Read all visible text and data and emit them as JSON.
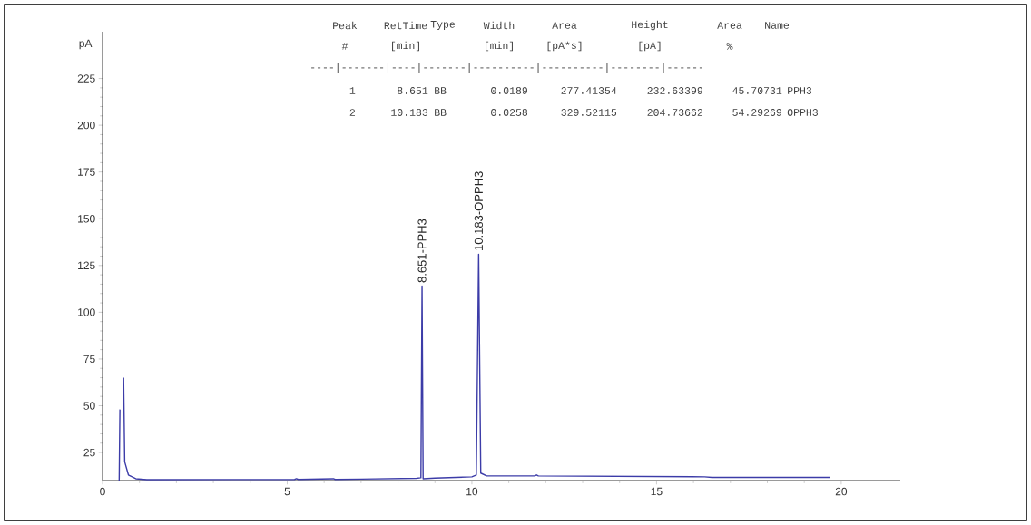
{
  "chart_data": {
    "type": "line",
    "ylabel": "pA",
    "x": [
      0.45,
      0.47,
      0.5,
      0.55,
      0.57,
      0.6,
      0.7,
      0.9,
      1.2,
      5.2,
      5.25,
      5.3,
      6.25,
      6.3,
      7.0,
      8.5,
      8.62,
      8.651,
      8.68,
      9.0,
      10.0,
      10.12,
      10.183,
      10.24,
      10.4,
      11.7,
      11.75,
      11.8,
      16.3,
      16.5,
      19.7
    ],
    "values": [
      10,
      48,
      null,
      null,
      65,
      20,
      13,
      11,
      10.5,
      10.6,
      11,
      10.6,
      11,
      10.6,
      10.8,
      11.2,
      11.5,
      114,
      11,
      11.3,
      12,
      13,
      131,
      14,
      12.5,
      12.5,
      13,
      12.5,
      12,
      11.7,
      11.7
    ],
    "color": "#3c3ca8",
    "xlim": [
      0,
      21.6
    ],
    "ylim": [
      10,
      250
    ],
    "xticks": [
      0,
      5,
      10,
      15,
      20
    ],
    "yticks": [
      25,
      50,
      75,
      100,
      125,
      150,
      175,
      200,
      225
    ],
    "marker": "none",
    "line_style": "solid",
    "annotations": [
      {
        "text": "8.651-PPH3",
        "x": 8.651,
        "y": 114
      },
      {
        "text": "10.183-OPPH3",
        "x": 10.183,
        "y": 131
      },
      "Peak",
      "RetTime",
      "Type",
      "Width",
      "Area",
      "Height",
      "Area",
      "Name",
      "#",
      "[min]",
      "[min]",
      "[pA*s]",
      "[pA]",
      "%",
      "----|-------|----|-------|----------|----------|--------|------",
      "1",
      "8.651",
      "BB",
      "0.0189",
      "277.41354",
      "232.63399",
      "45.70731",
      "PPH3",
      "2",
      "10.183",
      "BB",
      "0.0258",
      "329.52115",
      "204.73662",
      "54.29269",
      "OPPH3"
    ]
  }
}
